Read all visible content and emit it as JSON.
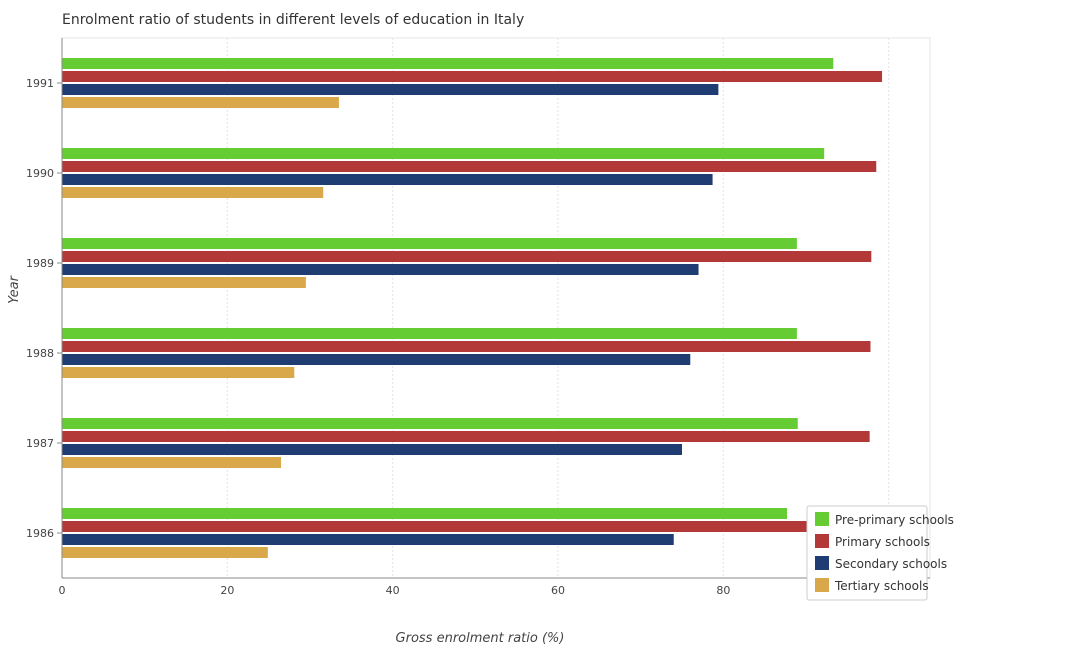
{
  "chart_data": {
    "type": "bar",
    "orientation": "horizontal",
    "title": "Enrolment ratio of students in different levels of education in Italy",
    "xlabel": "Gross enrolment ratio (%)",
    "ylabel": "Year",
    "xlim": [
      0,
      105
    ],
    "xticks": [
      0,
      20,
      40,
      60,
      80,
      100
    ],
    "categories": [
      "1986",
      "1987",
      "1988",
      "1989",
      "1990",
      "1991"
    ],
    "series": [
      {
        "name": "Pre-primary schools",
        "color": "#66cc33",
        "values": [
          87.7,
          89.0,
          88.9,
          88.9,
          92.2,
          93.3
        ]
      },
      {
        "name": "Primary schools",
        "color": "#b33939",
        "values": [
          98.4,
          97.7,
          97.8,
          97.9,
          98.5,
          99.2
        ]
      },
      {
        "name": "Secondary schools",
        "color": "#1f3d73",
        "values": [
          74.0,
          75.0,
          76.0,
          77.0,
          78.7,
          79.4
        ]
      },
      {
        "name": "Tertiary schools",
        "color": "#d9a84a",
        "values": [
          24.9,
          26.5,
          28.1,
          29.5,
          31.6,
          33.5
        ]
      }
    ],
    "grid": true,
    "legend_position": "bottom-right"
  }
}
